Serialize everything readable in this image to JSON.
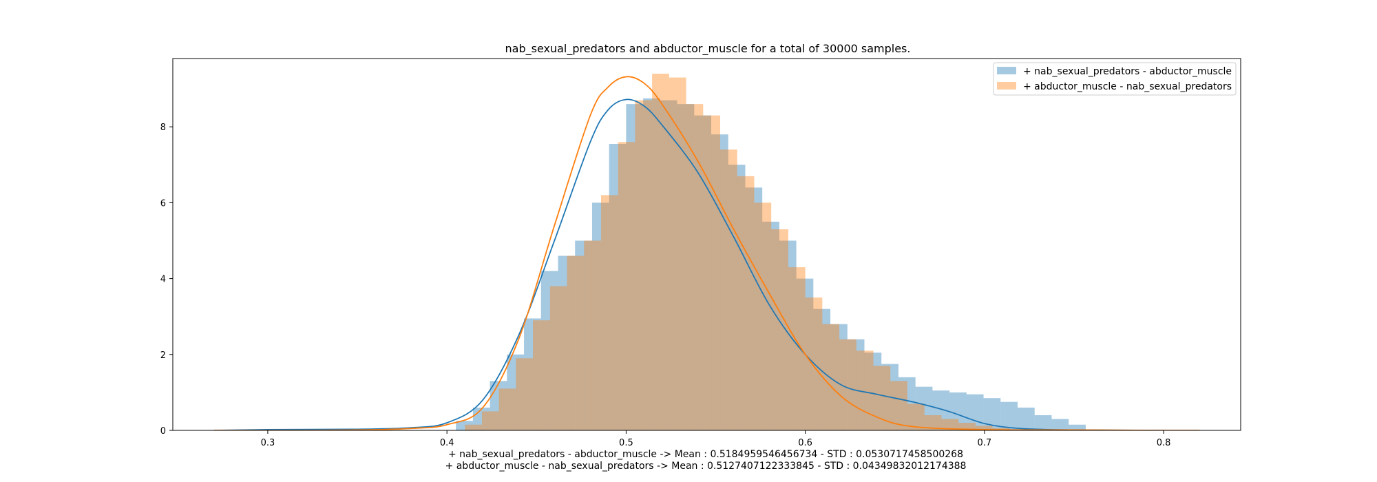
{
  "chart_data": {
    "type": "histogram",
    "title": "nab_sexual_predators and abductor_muscle for a total of 30000 samples.",
    "xlabel_lines": [
      "+ nab_sexual_predators - abductor_muscle -> Mean : 0.5184959546456734 - STD : 0.0530717458500268",
      "+ abductor_muscle - nab_sexual_predators -> Mean : 0.5127407122333845 - STD : 0.04349832012174388"
    ],
    "xlim": [
      0.247,
      0.843
    ],
    "ylim": [
      0,
      9.8
    ],
    "xticks": [
      0.3,
      0.4,
      0.5,
      0.6,
      0.7,
      0.8
    ],
    "xtick_labels": [
      "0.3",
      "0.4",
      "0.5",
      "0.6",
      "0.7",
      "0.8"
    ],
    "yticks": [
      0,
      2,
      4,
      6,
      8
    ],
    "ytick_labels": [
      "0",
      "2",
      "4",
      "6",
      "8"
    ],
    "legend_position": "top-right",
    "series": [
      {
        "name": "+ nab_sexual_predators - abductor_muscle",
        "bar_color": "#1f77b4",
        "bar_opacity": 0.4,
        "line_color": "#1f77b4",
        "bins_start": 0.405,
        "bin_width": 0.0095,
        "bar_heights": [
          0.25,
          0.6,
          1.3,
          2.0,
          2.95,
          4.2,
          4.6,
          5.0,
          6.0,
          7.55,
          8.6,
          8.75,
          8.7,
          8.6,
          8.3,
          7.8,
          7.0,
          6.4,
          5.5,
          5.0,
          4.0,
          3.2,
          2.8,
          2.4,
          2.05,
          1.75,
          1.4,
          1.15,
          1.05,
          1.0,
          0.95,
          0.85,
          0.75,
          0.6,
          0.4,
          0.3,
          0.15
        ],
        "kde_x": [
          0.27,
          0.3,
          0.35,
          0.38,
          0.4,
          0.42,
          0.44,
          0.46,
          0.48,
          0.49,
          0.5,
          0.51,
          0.52,
          0.54,
          0.56,
          0.58,
          0.6,
          0.62,
          0.64,
          0.66,
          0.68,
          0.7,
          0.72,
          0.75,
          0.8
        ],
        "kde_y": [
          0.0,
          0.02,
          0.03,
          0.07,
          0.2,
          0.8,
          2.5,
          5.0,
          7.6,
          8.45,
          8.72,
          8.55,
          8.05,
          6.8,
          5.1,
          3.3,
          2.0,
          1.2,
          0.95,
          0.75,
          0.5,
          0.18,
          0.05,
          0.01,
          0.0
        ]
      },
      {
        "name": "+ abductor_muscle - nab_sexual_predators",
        "bar_color": "#ff7f0e",
        "bar_opacity": 0.4,
        "line_color": "#ff7f0e",
        "bins_start": 0.41,
        "bin_width": 0.0095,
        "bar_heights": [
          0.15,
          0.5,
          1.1,
          1.9,
          2.9,
          3.8,
          4.6,
          5.0,
          6.2,
          7.6,
          8.7,
          9.4,
          9.3,
          8.6,
          8.3,
          7.4,
          6.7,
          6.0,
          5.3,
          4.3,
          3.5,
          2.8,
          2.4,
          2.1,
          1.7,
          1.3,
          0.7,
          0.4,
          0.3,
          0.2,
          0.12,
          0.06,
          0.03
        ],
        "kde_x": [
          0.27,
          0.3,
          0.35,
          0.38,
          0.4,
          0.42,
          0.44,
          0.46,
          0.48,
          0.49,
          0.5,
          0.51,
          0.52,
          0.54,
          0.56,
          0.58,
          0.6,
          0.62,
          0.64,
          0.66,
          0.7,
          0.75,
          0.8,
          0.82
        ],
        "kde_y": [
          0.0,
          0.0,
          0.01,
          0.05,
          0.15,
          0.6,
          2.4,
          5.4,
          8.3,
          9.05,
          9.32,
          9.15,
          8.6,
          7.1,
          5.3,
          3.6,
          2.0,
          0.9,
          0.35,
          0.1,
          0.02,
          0.01,
          0.0,
          0.0
        ]
      }
    ]
  }
}
